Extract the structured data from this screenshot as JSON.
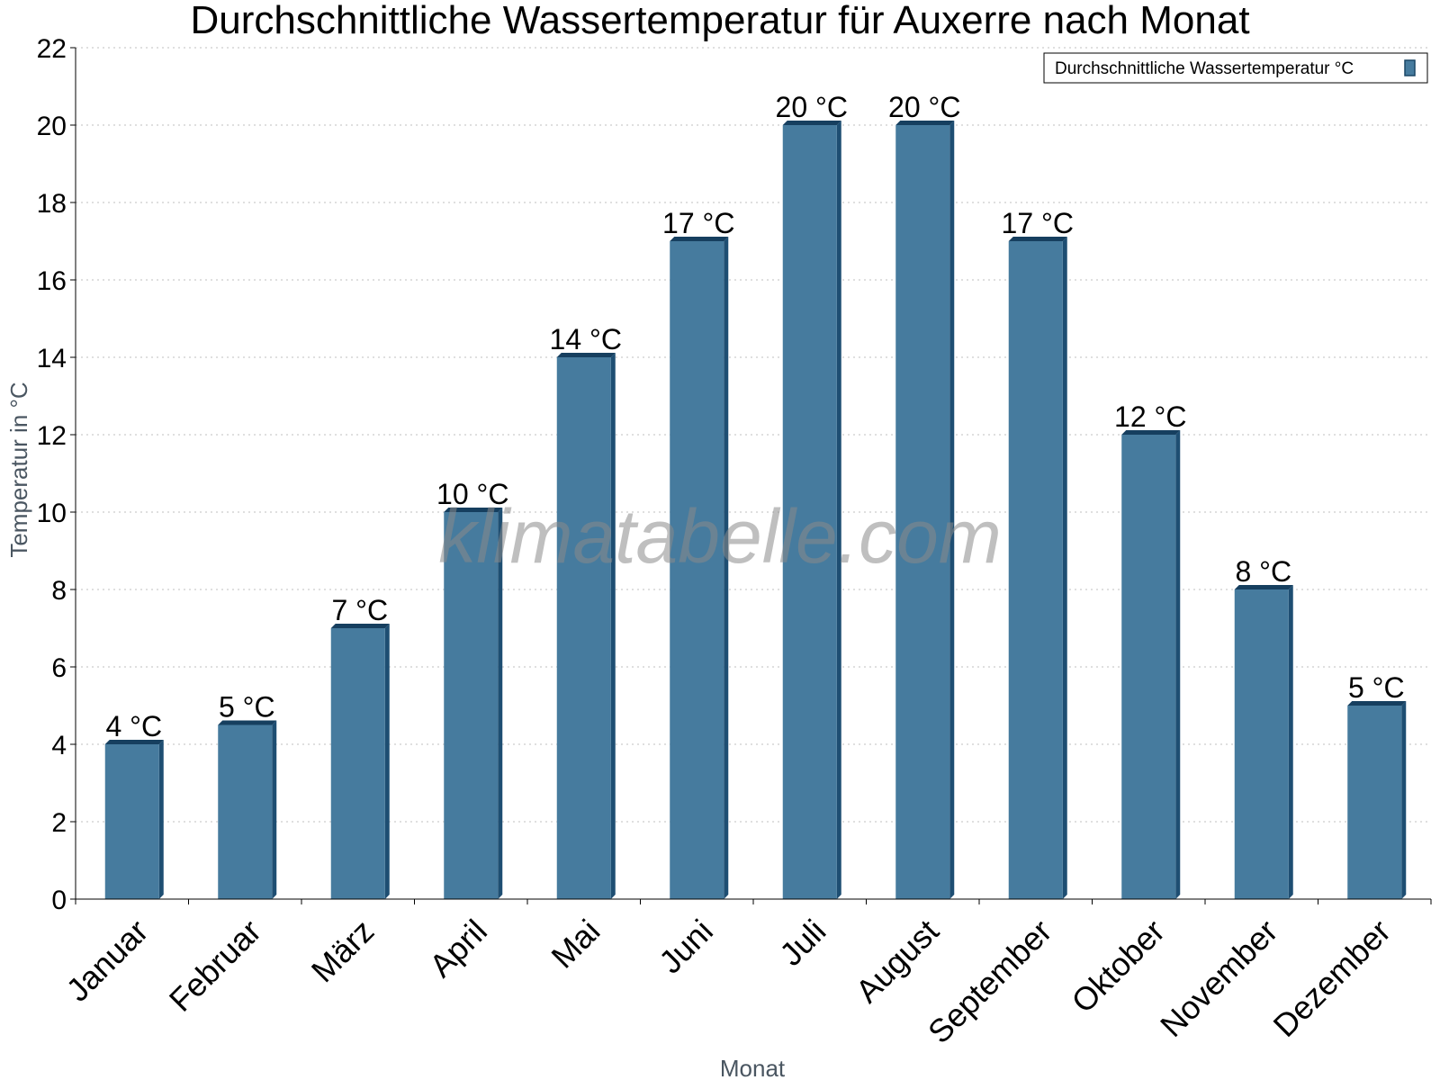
{
  "chart_data": {
    "type": "bar",
    "title": "Durchschnittliche Wassertemperatur für Auxerre nach Monat",
    "xlabel": "Monat",
    "ylabel": "Temperatur in °C",
    "categories": [
      "Januar",
      "Februar",
      "März",
      "April",
      "Mai",
      "Juni",
      "Juli",
      "August",
      "September",
      "Oktober",
      "November",
      "Dezember"
    ],
    "series": [
      {
        "name": "Durchschnittliche Wassertemperatur °C",
        "values": [
          4,
          4.5,
          7,
          10,
          14,
          17,
          20,
          20,
          17,
          12,
          8,
          5
        ],
        "labels": [
          "4 °C",
          "5 °C",
          "7 °C",
          "10 °C",
          "14 °C",
          "17 °C",
          "20 °C",
          "20 °C",
          "17 °C",
          "12 °C",
          "8 °C",
          "5 °C"
        ],
        "color": "#467b9e"
      }
    ],
    "ylim": [
      0,
      22
    ],
    "yticks": [
      0,
      2,
      4,
      6,
      8,
      10,
      12,
      14,
      16,
      18,
      20,
      22
    ],
    "grid": true,
    "legend_position": "top-right",
    "watermark": "klimatabelle.com"
  }
}
